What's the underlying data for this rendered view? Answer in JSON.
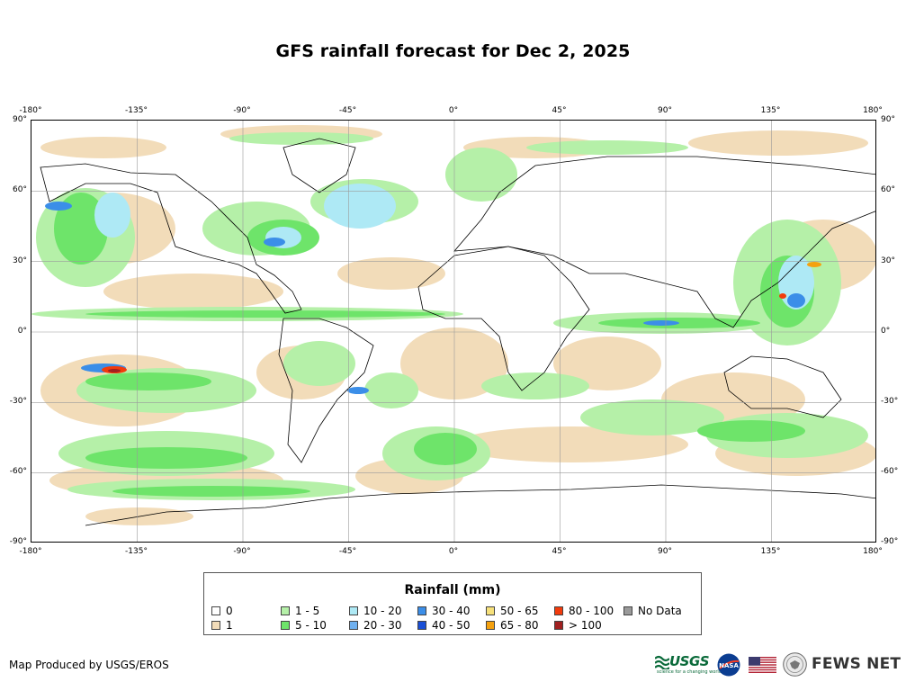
{
  "title": "GFS rainfall forecast for Dec 2, 2025",
  "axes": {
    "longitude_labels": [
      "-180°",
      "-135°",
      "-90°",
      "-45°",
      "0°",
      "45°",
      "90°",
      "135°",
      "180°"
    ],
    "latitude_labels": [
      "90°",
      "60°",
      "30°",
      "0°",
      "-30°",
      "-60°",
      "-90°"
    ]
  },
  "legend": {
    "title": "Rainfall (mm)",
    "items": [
      {
        "label": "0",
        "color": "#ffffff"
      },
      {
        "label": "1",
        "color": "#f2dcb9"
      },
      {
        "label": "1 - 5",
        "color": "#b5f0a8"
      },
      {
        "label": "5 - 10",
        "color": "#6ee46a"
      },
      {
        "label": "10 - 20",
        "color": "#aee9f5"
      },
      {
        "label": "20 - 30",
        "color": "#6fb0ef"
      },
      {
        "label": "30 - 40",
        "color": "#3b8ee8"
      },
      {
        "label": "40 - 50",
        "color": "#1a4fd6"
      },
      {
        "label": "50 - 65",
        "color": "#f6e07a"
      },
      {
        "label": "65 - 80",
        "color": "#f5a10f"
      },
      {
        "label": "80 - 100",
        "color": "#f23b0c"
      },
      {
        "label": "> 100",
        "color": "#a02020"
      },
      {
        "label": "No Data",
        "color": "#9a9a9a"
      }
    ]
  },
  "credit": "Map Produced by USGS/EROS",
  "logos": {
    "usgs": "USGS",
    "usgs_tagline": "science for a changing world",
    "nasa": "NASA",
    "flag": "us-flag-icon",
    "seal": "state-department-seal-icon",
    "fews": "FEWS NET"
  }
}
